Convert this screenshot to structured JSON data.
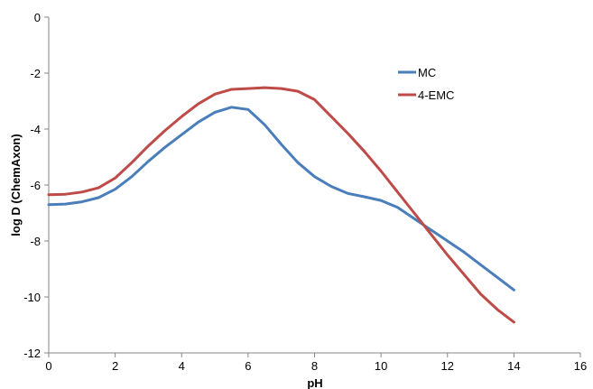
{
  "chart_data": {
    "type": "line",
    "title": "",
    "xlabel": "pH",
    "ylabel": "log D (ChemAxon)",
    "xlim": [
      0,
      16
    ],
    "ylim": [
      -12,
      0
    ],
    "xticks": [
      0,
      2,
      4,
      6,
      8,
      10,
      12,
      14,
      16
    ],
    "yticks": [
      0,
      -2,
      -4,
      -6,
      -8,
      -10,
      -12
    ],
    "grid": false,
    "legend_position": "top-right",
    "series": [
      {
        "name": "MC",
        "color": "#4a7ebb",
        "x": [
          0,
          0.5,
          1,
          1.5,
          2,
          2.5,
          3,
          3.5,
          4,
          4.5,
          5,
          5.5,
          6,
          6.5,
          7,
          7.5,
          8,
          8.5,
          9,
          9.5,
          10,
          10.5,
          11,
          11.5,
          12,
          12.5,
          13,
          13.5,
          14
        ],
        "y": [
          -6.7,
          -6.68,
          -6.6,
          -6.45,
          -6.15,
          -5.7,
          -5.15,
          -4.65,
          -4.2,
          -3.75,
          -3.4,
          -3.22,
          -3.3,
          -3.85,
          -4.55,
          -5.2,
          -5.7,
          -6.05,
          -6.3,
          -6.42,
          -6.55,
          -6.8,
          -7.2,
          -7.6,
          -8.0,
          -8.4,
          -8.85,
          -9.3,
          -9.75
        ]
      },
      {
        "name": "4-EMC",
        "color": "#be4b48",
        "x": [
          0,
          0.5,
          1,
          1.5,
          2,
          2.5,
          3,
          3.5,
          4,
          4.5,
          5,
          5.5,
          6,
          6.5,
          7,
          7.5,
          8,
          8.5,
          9,
          9.5,
          10,
          10.5,
          11,
          11.5,
          12,
          12.5,
          13,
          13.5,
          14
        ],
        "y": [
          -6.35,
          -6.33,
          -6.25,
          -6.1,
          -5.75,
          -5.2,
          -4.6,
          -4.05,
          -3.55,
          -3.1,
          -2.75,
          -2.58,
          -2.55,
          -2.52,
          -2.55,
          -2.65,
          -2.95,
          -3.55,
          -4.15,
          -4.8,
          -5.5,
          -6.25,
          -7.0,
          -7.75,
          -8.5,
          -9.2,
          -9.9,
          -10.45,
          -10.9
        ]
      }
    ]
  }
}
